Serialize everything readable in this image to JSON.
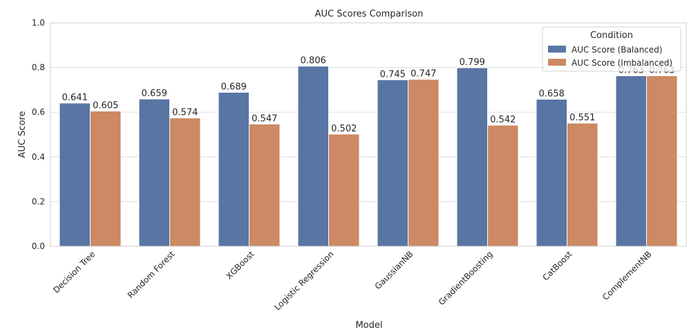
{
  "chart_data": {
    "type": "bar",
    "title": "AUC Scores Comparison",
    "xlabel": "Model",
    "ylabel": "AUC Score",
    "ylim": [
      0,
      1.0
    ],
    "yticks": [
      "0.0",
      "0.2",
      "0.4",
      "0.6",
      "0.8",
      "1.0"
    ],
    "grid": true,
    "categories": [
      "Decision Tree",
      "Random Forest",
      "XGBoost",
      "Logistic Regression",
      "GaussianNB",
      "GradientBoosting",
      "CatBoost",
      "ComplementNB"
    ],
    "series": [
      {
        "name": "AUC Score (Balanced)",
        "color": "#5875a4",
        "values": [
          0.641,
          0.659,
          0.689,
          0.806,
          0.745,
          0.799,
          0.658,
          0.763
        ],
        "labels": [
          "0.641",
          "0.659",
          "0.689",
          "0.806",
          "0.745",
          "0.799",
          "0.658",
          "0.763"
        ]
      },
      {
        "name": "AUC Score (Imbalanced)",
        "color": "#cc8963",
        "values": [
          0.605,
          0.574,
          0.547,
          0.502,
          0.747,
          0.542,
          0.551,
          0.763
        ],
        "labels": [
          "0.605",
          "0.574",
          "0.547",
          "0.502",
          "0.747",
          "0.542",
          "0.551",
          "0.763"
        ]
      }
    ],
    "legend": {
      "title": "Condition",
      "placement": "top-right"
    }
  }
}
